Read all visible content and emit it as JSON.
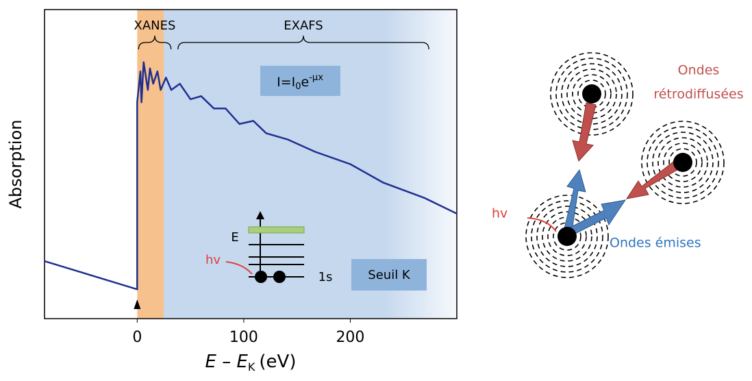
{
  "chart_data": {
    "type": "line",
    "y_label": "Absorption",
    "x_label": {
      "main": "E – E",
      "sub": "K",
      "unit": "(eV)"
    },
    "xlim": [
      -87,
      300
    ],
    "ylim": [
      0,
      1
    ],
    "xticks": [
      0,
      100,
      200
    ],
    "series": [
      {
        "color": "#1f2f8f",
        "x": [
          -87,
          0,
          0,
          3,
          4,
          6,
          10,
          12,
          15,
          19,
          22,
          27,
          32,
          40,
          50,
          60,
          72,
          83,
          96,
          109,
          121,
          141,
          167,
          200,
          231,
          270,
          300
        ],
        "values": [
          0.186,
          0.095,
          0.7,
          0.8,
          0.7,
          0.83,
          0.74,
          0.81,
          0.76,
          0.8,
          0.74,
          0.78,
          0.74,
          0.76,
          0.71,
          0.72,
          0.68,
          0.68,
          0.63,
          0.64,
          0.6,
          0.58,
          0.54,
          0.5,
          0.44,
          0.39,
          0.34
        ]
      }
    ],
    "bands": [
      {
        "start": 0,
        "end": 25,
        "color": "#f6c18c"
      },
      {
        "start": 25,
        "end": 300,
        "color": "#c5d8ee"
      }
    ],
    "braces": [
      {
        "label": "XANES",
        "start": 0,
        "end": 33
      },
      {
        "label": "EXAFS",
        "start": 37,
        "end": 275
      }
    ],
    "formula": {
      "base": "I=I",
      "sub": "0",
      "exp_base": "e",
      "sup": "-μx"
    },
    "inset": {
      "energy": "E",
      "photon": "hv",
      "level": "1s",
      "edge": "Seuil K"
    }
  },
  "diagram": {
    "backscattered": [
      "Ondes",
      "rétrodiffusées"
    ],
    "photon": "hv",
    "emitted": "Ondes émises"
  }
}
